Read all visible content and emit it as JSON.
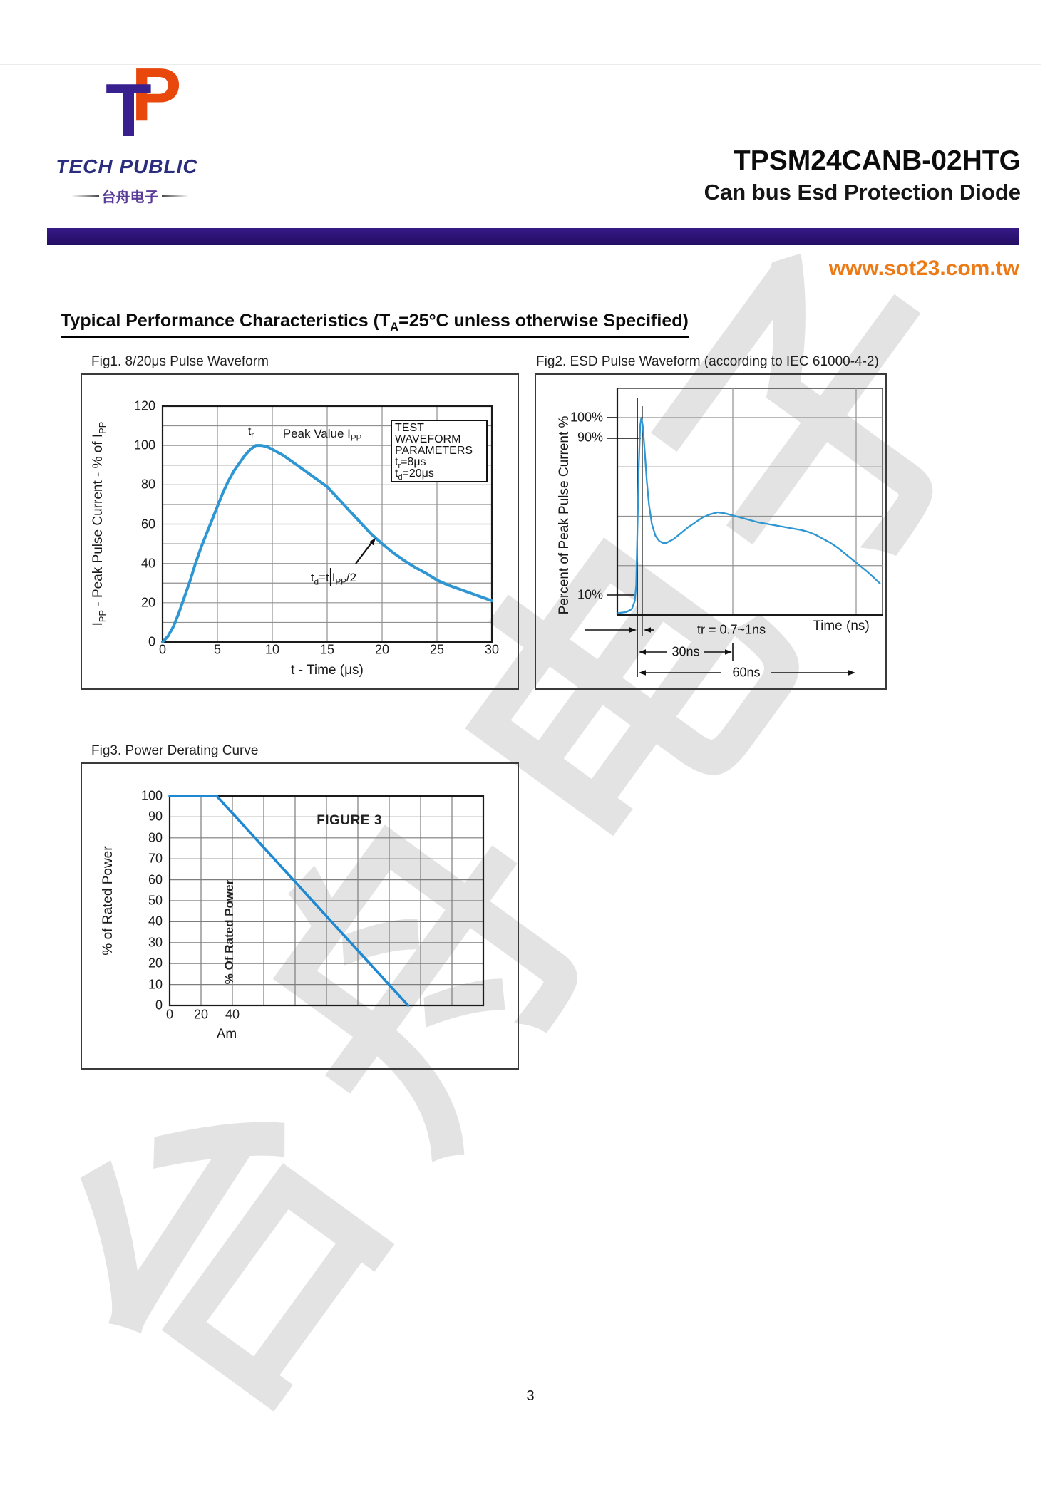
{
  "watermark": {
    "text": "台舟电子"
  },
  "logo": {
    "monogram_t": "T",
    "monogram_p": "P",
    "brand": "TECH PUBLIC",
    "chinese": "台舟电子"
  },
  "header": {
    "part_number": "TPSM24CANB-02HTG",
    "subtitle": "Can bus Esd Protection Diode",
    "website": "www.sot23.com.tw"
  },
  "colors": {
    "accent_bar": "#2d1377",
    "website_orange": "#ec7b17",
    "logo_purple": "#38218f",
    "logo_orange": "#e8480c",
    "brand_navy": "#2b2d7e",
    "curve_blue": "#2e96d2",
    "grid_gray": "#909090",
    "watermark_gray": "#e3e3e3"
  },
  "section": {
    "title_rich": [
      {
        "t": "Typical Performance Characteristics (T"
      },
      {
        "s": "A"
      },
      {
        "t": "=25°C unless otherwise Specified)"
      }
    ]
  },
  "page": {
    "number": "3"
  },
  "fig1": {
    "title": "Fig1.   8/20μs Pulse Waveform",
    "xlabel": "t - Time (μs)",
    "ylabel_rich": [
      {
        "t": "I"
      },
      {
        "s": "PP"
      },
      {
        "t": " - Peak Pulse Current - % of I"
      },
      {
        "s": "PP"
      }
    ],
    "y_ticks": [
      "120",
      "100",
      "80",
      "60",
      "40",
      "20",
      "0"
    ],
    "x_ticks": [
      "0",
      "5",
      "10",
      "15",
      "20",
      "25",
      "30"
    ],
    "annotations": {
      "tr_rich": [
        {
          "t": "t"
        },
        {
          "s": "r"
        }
      ],
      "peak_rich": [
        {
          "t": "Peak Value I"
        },
        {
          "s": "PP"
        }
      ],
      "td_rich": [
        {
          "t": "t"
        },
        {
          "s": "d"
        },
        {
          "t": "=t"
        },
        {
          "bar": true
        },
        {
          "t": "I"
        },
        {
          "s": "PP"
        },
        {
          "t": "/2"
        }
      ],
      "box_lines_rich": [
        [
          {
            "t": "TEST"
          }
        ],
        [
          {
            "t": "WAVEFORM"
          }
        ],
        [
          {
            "t": "PARAMETERS"
          }
        ],
        [
          {
            "t": "t"
          },
          {
            "s": "r"
          },
          {
            "t": "=8μs"
          }
        ],
        [
          {
            "t": "t"
          },
          {
            "s": "d"
          },
          {
            "t": "=20μs"
          }
        ]
      ]
    }
  },
  "fig2": {
    "title": "Fig2. ESD Pulse Waveform (according to IEC 61000-4-2)",
    "ylabel": "Percent of Peak Pulse Current %",
    "xlabel": "Time (ns)",
    "y_ticks": [
      "100%",
      "90%",
      "10%"
    ],
    "dim_tr": "tr = 0.7~1ns",
    "dim_30": "30ns",
    "dim_60": "60ns"
  },
  "fig3": {
    "title": "Fig3.   Power Derating Curve",
    "ylabel": "% of Rated Power",
    "figure_label": "FIGURE 3",
    "rotated_label": "% Of Rated Power",
    "x_caption": "Am",
    "x_ticks": [
      "0",
      "20",
      "40"
    ],
    "y_ticks": [
      "100",
      "90",
      "80",
      "70",
      "60",
      "50",
      "40",
      "30",
      "20",
      "10",
      "0"
    ]
  },
  "chart_data": [
    {
      "id": "fig1",
      "type": "line",
      "title": "8/20μs Pulse Waveform",
      "xlabel": "t - Time (μs)",
      "ylabel": "Ipp - Peak Pulse Current - % of Ipp",
      "xlim": [
        0,
        30
      ],
      "ylim": [
        0,
        120
      ],
      "x_grid_step": 5,
      "y_grid_step": 10,
      "legend": "none",
      "x": [
        0,
        0.5,
        1,
        1.5,
        2,
        2.5,
        3,
        3.5,
        4,
        4.5,
        5,
        5.5,
        6,
        6.5,
        7,
        7.5,
        8,
        8.5,
        9,
        9.5,
        10,
        11,
        12,
        13,
        14,
        15,
        16,
        17,
        18,
        19,
        20,
        21,
        22,
        23,
        24,
        25,
        26,
        27,
        28,
        29,
        30
      ],
      "y": [
        0,
        3,
        8,
        15,
        23,
        31,
        40,
        48,
        55,
        62,
        69,
        76,
        82,
        87,
        91,
        95,
        98,
        100,
        100,
        99.5,
        98,
        95,
        91,
        87,
        83,
        79,
        73,
        67,
        61,
        55,
        50,
        45.5,
        41.5,
        38,
        35,
        31.5,
        29,
        27,
        25,
        23,
        21
      ],
      "annotations": [
        "tr",
        "Peak Value Ipp",
        "td=t|Ipp/2",
        "TEST WAVEFORM PARAMETERS tr=8μs td=20μs"
      ]
    },
    {
      "id": "fig2",
      "type": "line",
      "title": "ESD Pulse Waveform (according to IEC 61000-4-2)",
      "xlabel": "Time (ns)",
      "ylabel": "Percent of Peak Pulse Current %",
      "xlim": [
        -5.2,
        67
      ],
      "ylim": [
        0,
        105
      ],
      "y_gridlines_pct": [
        25,
        50,
        75,
        100
      ],
      "x_gridlines_ns": [
        30,
        60
      ],
      "y_tick_labels": [
        "100%",
        "90%",
        "10%"
      ],
      "x": [
        -5.2,
        -3,
        -1.5,
        -0.7,
        -0.3,
        0,
        0.4,
        0.8,
        1.1,
        1.5,
        2,
        2.6,
        3.2,
        4,
        5,
        6,
        7,
        8,
        9,
        10,
        12,
        14,
        16,
        18,
        20,
        22,
        24,
        26,
        28,
        30,
        33,
        36,
        39,
        42,
        45,
        47,
        49,
        51,
        53,
        55,
        57,
        59,
        61,
        63,
        64.5,
        66.5
      ],
      "y": [
        1,
        1.5,
        3,
        7,
        15,
        40,
        75,
        96,
        100,
        96,
        84,
        68,
        56,
        46,
        40,
        37.5,
        36.5,
        36.5,
        37.5,
        38.5,
        41.5,
        44.5,
        47,
        49.5,
        51,
        52,
        51.5,
        50.5,
        49.5,
        48.5,
        47,
        46,
        45,
        44,
        43,
        42,
        40.5,
        38.5,
        36.5,
        34,
        31,
        28,
        25,
        22,
        19.5,
        16
      ],
      "annotations": [
        "tr = 0.7~1ns",
        "30ns",
        "60ns"
      ]
    },
    {
      "id": "fig3",
      "type": "line",
      "title": "Power Derating Curve",
      "xlabel": "Am",
      "ylabel": "% of Rated Power",
      "xlim": [
        0,
        200
      ],
      "ylim": [
        0,
        100
      ],
      "x_grid_step": 20,
      "y_grid_step": 10,
      "x_tick_labels": [
        "0",
        "20",
        "40"
      ],
      "x": [
        0,
        30,
        152
      ],
      "y": [
        100,
        100,
        0
      ],
      "annotations": [
        "FIGURE 3",
        "% Of Rated Power"
      ]
    }
  ]
}
